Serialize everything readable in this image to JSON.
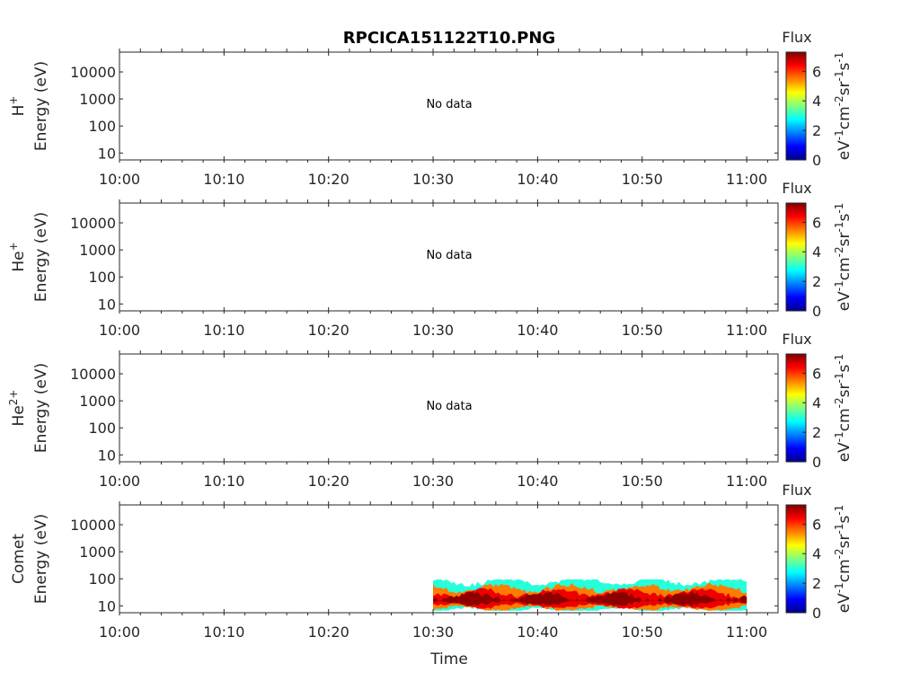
{
  "title": "RPCICA151122T10.PNG",
  "colors": {
    "axis": "#262626",
    "colormap": "jet"
  },
  "chart_data": [
    {
      "type": "heatmap",
      "panel": "H+",
      "ylabel_species": "H",
      "ylabel_sup": "+",
      "ylabel": "Energy (eV)",
      "yscale": "log",
      "ylim": [
        6,
        50000
      ],
      "yticks": [
        "10",
        "100",
        "1000",
        "10000"
      ],
      "xlim": [
        "10:00",
        "11:03"
      ],
      "xticks": [
        "10:00",
        "10:10",
        "10:20",
        "10:30",
        "10:40",
        "10:50",
        "11:00"
      ],
      "annotation": "No data",
      "colorbar": {
        "label": "Flux",
        "unit": "eV-1cm-2sr-1s-1",
        "range": [
          0,
          7.3
        ],
        "ticks": [
          "0",
          "2",
          "4",
          "6"
        ]
      },
      "bands": []
    },
    {
      "type": "heatmap",
      "panel": "He+",
      "ylabel_species": "He",
      "ylabel_sup": "+",
      "ylabel": "Energy (eV)",
      "yscale": "log",
      "ylim": [
        6,
        50000
      ],
      "yticks": [
        "10",
        "100",
        "1000",
        "10000"
      ],
      "xlim": [
        "10:00",
        "11:03"
      ],
      "xticks": [
        "10:00",
        "10:10",
        "10:20",
        "10:30",
        "10:40",
        "10:50",
        "11:00"
      ],
      "annotation": "No data",
      "colorbar": {
        "label": "Flux",
        "unit": "eV-1cm-2sr-1s-1",
        "range": [
          0,
          7.3
        ],
        "ticks": [
          "0",
          "2",
          "4",
          "6"
        ]
      },
      "bands": []
    },
    {
      "type": "heatmap",
      "panel": "He2+",
      "ylabel_species": "He",
      "ylabel_sup": "2+",
      "ylabel": "Energy (eV)",
      "yscale": "log",
      "ylim": [
        6,
        50000
      ],
      "yticks": [
        "10",
        "100",
        "1000",
        "10000"
      ],
      "xlim": [
        "10:00",
        "11:03"
      ],
      "xticks": [
        "10:00",
        "10:10",
        "10:20",
        "10:30",
        "10:40",
        "10:50",
        "11:00"
      ],
      "annotation": "No data",
      "colorbar": {
        "label": "Flux",
        "unit": "eV-1cm-2sr-1s-1",
        "range": [
          0,
          7.3
        ],
        "ticks": [
          "0",
          "2",
          "4",
          "6"
        ]
      },
      "bands": []
    },
    {
      "type": "heatmap",
      "panel": "Comet",
      "ylabel_species": "Comet",
      "ylabel_sup": "",
      "ylabel": "Energy (eV)",
      "yscale": "log",
      "ylim": [
        6,
        50000
      ],
      "yticks": [
        "10",
        "100",
        "1000",
        "10000"
      ],
      "xlim": [
        "10:00",
        "11:03"
      ],
      "xticks": [
        "10:00",
        "10:10",
        "10:20",
        "10:30",
        "10:40",
        "10:50",
        "11:00"
      ],
      "xlabel": "Time",
      "annotation": "",
      "colorbar": {
        "label": "Flux",
        "unit": "eV-1cm-2sr-1s-1",
        "range": [
          0,
          7.3
        ],
        "ticks": [
          "0",
          "2",
          "4",
          "6"
        ]
      },
      "data_start": "10:30",
      "data_end": "11:00",
      "bands": [
        {
          "level": 3,
          "e_low": 7,
          "e_high": 80
        },
        {
          "level": 5.5,
          "e_low": 8,
          "e_high": 45
        },
        {
          "level": 6.5,
          "e_low": 10,
          "e_high": 30
        },
        {
          "level": 7.2,
          "e_low": 13,
          "e_high": 22
        }
      ]
    }
  ]
}
